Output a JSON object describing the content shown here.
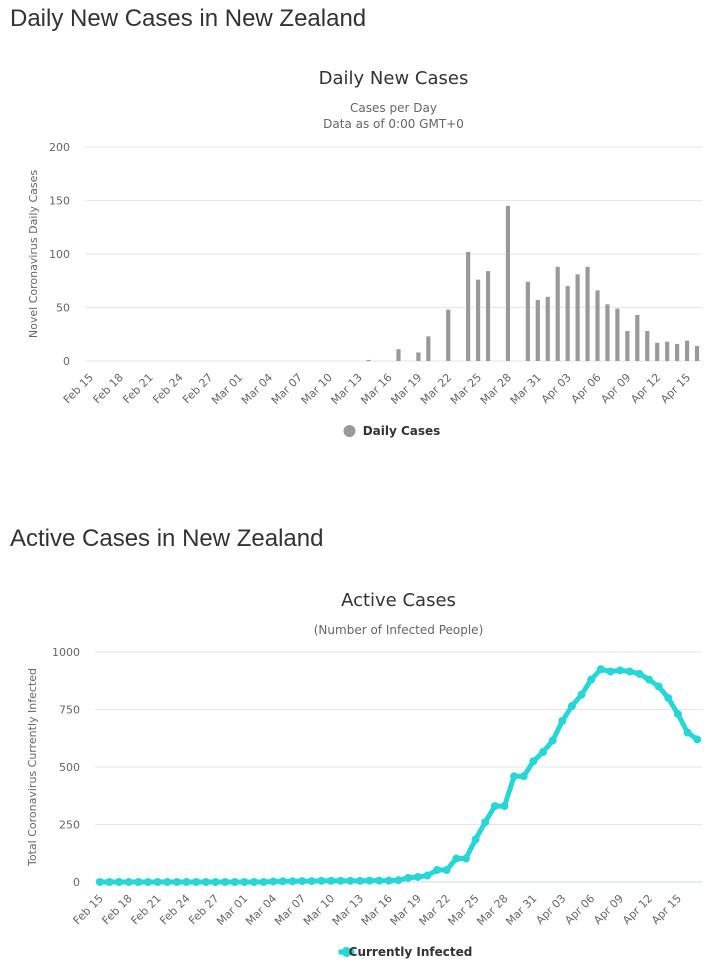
{
  "page": {
    "heading_daily": "Daily New Cases in New Zealand",
    "heading_active": "Active Cases in New Zealand"
  },
  "chart_data": [
    {
      "type": "bar",
      "title": "Daily New Cases",
      "subtitle_lines": [
        "Cases per Day",
        "Data as of 0:00 GMT+0"
      ],
      "ylabel": "Novel Coronavirus Daily Cases",
      "xlabel": "",
      "ylim": [
        0,
        200
      ],
      "yticks": [
        0,
        50,
        100,
        150,
        200
      ],
      "grid": true,
      "legend_position": "bottom-center",
      "x_tick_labels": [
        "Feb 15",
        "Feb 18",
        "Feb 21",
        "Feb 24",
        "Feb 27",
        "Mar 01",
        "Mar 04",
        "Mar 07",
        "Mar 10",
        "Mar 13",
        "Mar 16",
        "Mar 19",
        "Mar 22",
        "Mar 25",
        "Mar 28",
        "Mar 31",
        "Apr 03",
        "Apr 06",
        "Apr 09",
        "Apr 12",
        "Apr 15"
      ],
      "categories": [
        "Feb 15",
        "Feb 16",
        "Feb 17",
        "Feb 18",
        "Feb 19",
        "Feb 20",
        "Feb 21",
        "Feb 22",
        "Feb 23",
        "Feb 24",
        "Feb 25",
        "Feb 26",
        "Feb 27",
        "Feb 28",
        "Feb 29",
        "Mar 01",
        "Mar 02",
        "Mar 03",
        "Mar 04",
        "Mar 05",
        "Mar 06",
        "Mar 07",
        "Mar 08",
        "Mar 09",
        "Mar 10",
        "Mar 11",
        "Mar 12",
        "Mar 13",
        "Mar 14",
        "Mar 15",
        "Mar 16",
        "Mar 17",
        "Mar 18",
        "Mar 19",
        "Mar 20",
        "Mar 21",
        "Mar 22",
        "Mar 23",
        "Mar 24",
        "Mar 25",
        "Mar 26",
        "Mar 27",
        "Mar 28",
        "Mar 29",
        "Mar 30",
        "Mar 31",
        "Apr 01",
        "Apr 02",
        "Apr 03",
        "Apr 04",
        "Apr 05",
        "Apr 06",
        "Apr 07",
        "Apr 08",
        "Apr 09",
        "Apr 10",
        "Apr 11",
        "Apr 12",
        "Apr 13",
        "Apr 14",
        "Apr 15",
        "Apr 16"
      ],
      "series": [
        {
          "name": "Daily Cases",
          "color": "#999999",
          "values": [
            0,
            0,
            0,
            0,
            0,
            0,
            0,
            0,
            0,
            0,
            0,
            0,
            0,
            0,
            0,
            0,
            0,
            0,
            0,
            0,
            0,
            0,
            0,
            0,
            0,
            0,
            0,
            0,
            1,
            0,
            0,
            11,
            0,
            8,
            23,
            0,
            48,
            0,
            102,
            76,
            84,
            0,
            145,
            0,
            74,
            57,
            60,
            88,
            70,
            81,
            88,
            66,
            53,
            49,
            28,
            43,
            28,
            17,
            18,
            16,
            19,
            14
          ]
        }
      ]
    },
    {
      "type": "line",
      "title": "Active Cases",
      "subtitle_lines": [
        "(Number of Infected People)"
      ],
      "ylabel": "Total Coronavirus Currently Infected",
      "xlabel": "",
      "ylim": [
        0,
        1000
      ],
      "yticks": [
        0,
        250,
        500,
        750,
        1000
      ],
      "grid": true,
      "legend_position": "bottom-center",
      "x_tick_labels": [
        "Feb 15",
        "Feb 18",
        "Feb 21",
        "Feb 24",
        "Feb 27",
        "Mar 01",
        "Mar 04",
        "Mar 07",
        "Mar 10",
        "Mar 13",
        "Mar 16",
        "Mar 19",
        "Mar 22",
        "Mar 25",
        "Mar 28",
        "Mar 31",
        "Apr 03",
        "Apr 06",
        "Apr 09",
        "Apr 12",
        "Apr 15"
      ],
      "categories": [
        "Feb 15",
        "Feb 16",
        "Feb 17",
        "Feb 18",
        "Feb 19",
        "Feb 20",
        "Feb 21",
        "Feb 22",
        "Feb 23",
        "Feb 24",
        "Feb 25",
        "Feb 26",
        "Feb 27",
        "Feb 28",
        "Feb 29",
        "Mar 01",
        "Mar 02",
        "Mar 03",
        "Mar 04",
        "Mar 05",
        "Mar 06",
        "Mar 07",
        "Mar 08",
        "Mar 09",
        "Mar 10",
        "Mar 11",
        "Mar 12",
        "Mar 13",
        "Mar 14",
        "Mar 15",
        "Mar 16",
        "Mar 17",
        "Mar 18",
        "Mar 19",
        "Mar 20",
        "Mar 21",
        "Mar 22",
        "Mar 23",
        "Mar 24",
        "Mar 25",
        "Mar 26",
        "Mar 27",
        "Mar 28",
        "Mar 29",
        "Mar 30",
        "Mar 31",
        "Apr 01",
        "Apr 02",
        "Apr 03",
        "Apr 04",
        "Apr 05",
        "Apr 06",
        "Apr 07",
        "Apr 08",
        "Apr 09",
        "Apr 10",
        "Apr 11",
        "Apr 12",
        "Apr 13",
        "Apr 14",
        "Apr 15",
        "Apr 16",
        "Apr 17"
      ],
      "series": [
        {
          "name": "Currently Infected",
          "color": "#29d6d6",
          "values": [
            0,
            0,
            0,
            0,
            0,
            0,
            0,
            0,
            0,
            0,
            0,
            0,
            0,
            0,
            0,
            0,
            0,
            0,
            2,
            3,
            3,
            4,
            4,
            5,
            5,
            5,
            5,
            5,
            6,
            6,
            6,
            8,
            18,
            22,
            28,
            52,
            52,
            102,
            102,
            185,
            260,
            330,
            330,
            460,
            460,
            525,
            565,
            615,
            700,
            765,
            815,
            880,
            925,
            915,
            920,
            915,
            905,
            880,
            850,
            800,
            730,
            650,
            620
          ]
        }
      ]
    }
  ]
}
